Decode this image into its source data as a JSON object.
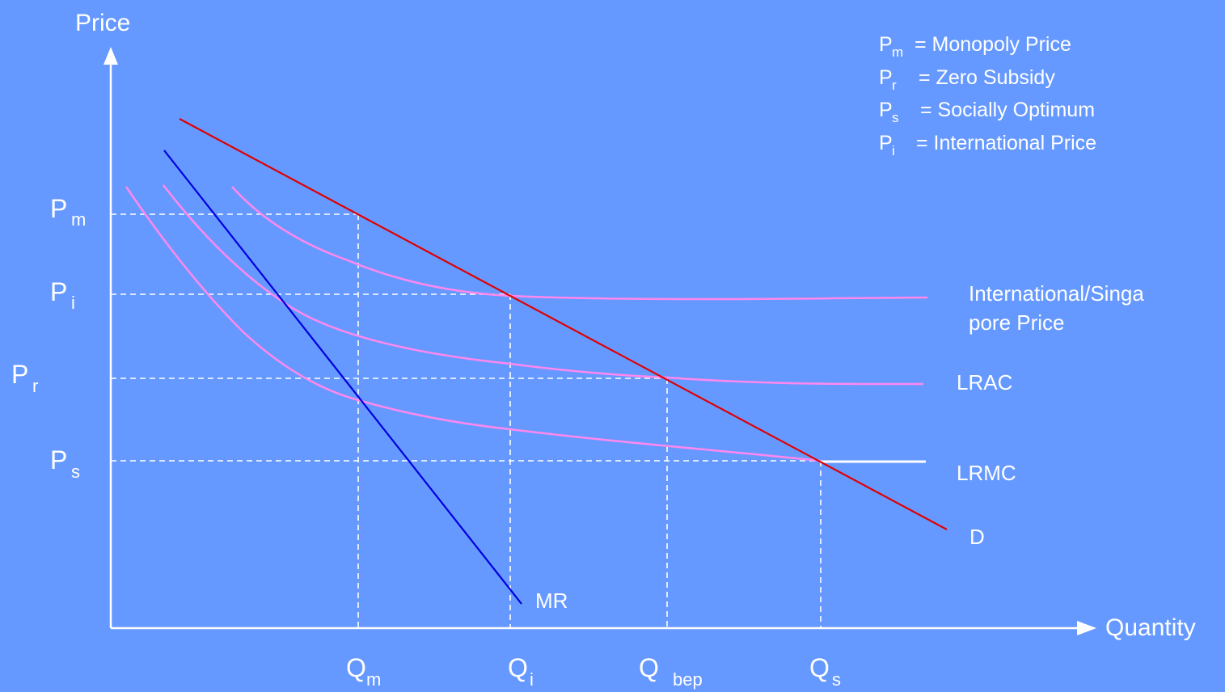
{
  "axes": {
    "y_title": "Price",
    "x_title": "Quantity"
  },
  "price_labels": {
    "pm": {
      "main": "P",
      "sub": "m"
    },
    "pi": {
      "main": "P",
      "sub": "i"
    },
    "pr": {
      "main": "P",
      "sub": "r"
    },
    "ps": {
      "main": "P",
      "sub": "s"
    }
  },
  "quantity_labels": {
    "qm": {
      "main": "Q",
      "sub": "m"
    },
    "qi": {
      "main": "Q",
      "sub": "i"
    },
    "qbep": {
      "main": "Q",
      "sub": "bep"
    },
    "qs": {
      "main": "Q",
      "sub": "s"
    }
  },
  "curve_labels": {
    "international_line1": "International/Singa",
    "international_line2": "pore Price",
    "lrac": "LRAC",
    "lrmc": "LRMC",
    "demand": "D",
    "mr": "MR"
  },
  "legend": [
    {
      "main": "P",
      "sub": "m",
      "text": "= Monopoly Price"
    },
    {
      "main": "P",
      "sub": "r",
      "text": "=  Zero Subsidy"
    },
    {
      "main": "P",
      "sub": "s",
      "text": "= Socially Optimum"
    },
    {
      "main": "P",
      "sub": "i",
      "text": "= International Price"
    }
  ],
  "colors": {
    "background": "#6699ff",
    "demand": "#e00000",
    "mr": "#0000dd",
    "cost_curves": "#ff88ee",
    "axes": "#ffffff"
  }
}
